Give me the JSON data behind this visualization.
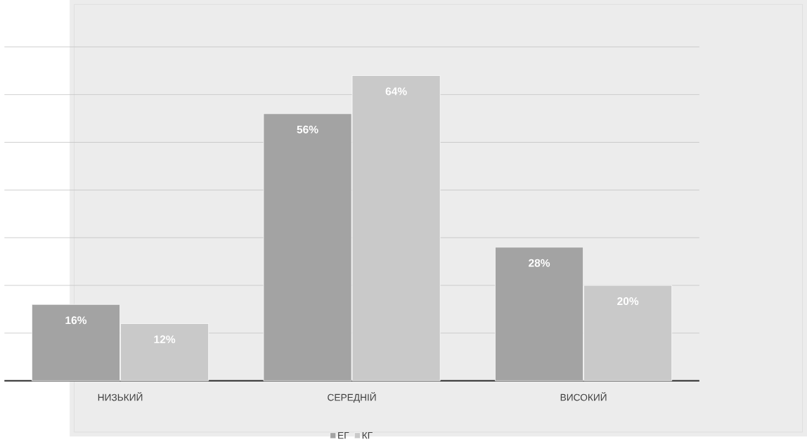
{
  "chart_data": {
    "type": "bar",
    "categories": [
      "НИЗЬКИЙ",
      "СЕРЕДНІЙ",
      "ВИСОКИЙ"
    ],
    "series": [
      {
        "name": "ЕГ",
        "color": "#a3a3a3",
        "values": [
          16,
          56,
          28
        ],
        "value_labels": [
          "16%",
          "56%",
          "28%"
        ]
      },
      {
        "name": "КГ",
        "color": "#c9c9c9",
        "values": [
          12,
          64,
          20
        ],
        "value_labels": [
          "12%",
          "64%",
          "20%"
        ]
      }
    ],
    "ylim": [
      0,
      70
    ],
    "yticks": [
      {
        "value": 0,
        "label": null
      },
      {
        "value": 10,
        "label": null
      },
      {
        "value": 20,
        "label": null
      },
      {
        "value": 30,
        "label": null
      },
      {
        "value": 40,
        "label": null
      },
      {
        "value": 50,
        "label": null
      },
      {
        "value": 60,
        "label": null
      },
      {
        "value": 70,
        "label": null
      }
    ],
    "grid": "y",
    "legend": "bottom",
    "tick_labels": "x"
  }
}
